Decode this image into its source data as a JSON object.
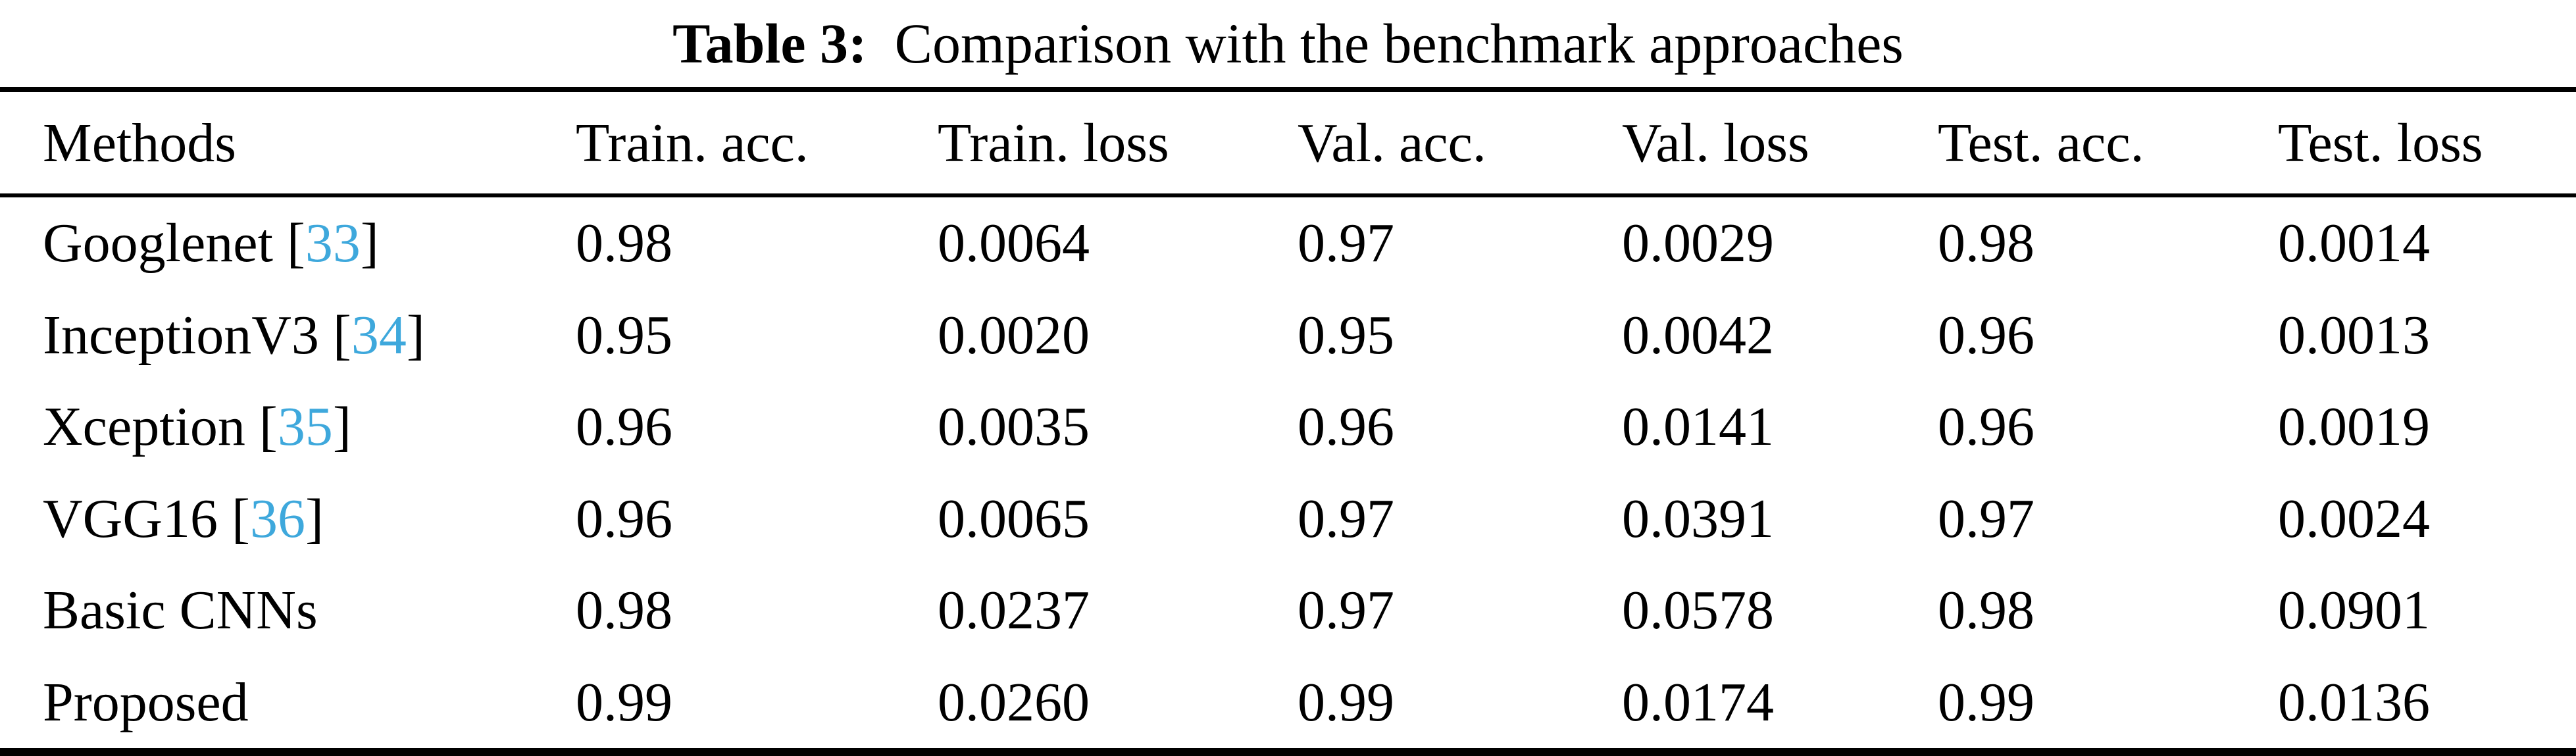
{
  "title": {
    "label": "Table 3:",
    "text": "Comparison with the benchmark approaches"
  },
  "columns": [
    "Methods",
    "Train. acc.",
    "Train. loss",
    "Val. acc.",
    "Val. loss",
    "Test. acc.",
    "Test. loss"
  ],
  "punctuation": {
    "bracket_open": "[",
    "bracket_close": "]"
  },
  "colors": {
    "citation": "#3ea8dc",
    "text": "#000000",
    "background": "#ffffff",
    "rule": "#000000"
  },
  "rows": [
    {
      "method": "Googlenet",
      "citation": "33",
      "train_acc": "0.98",
      "train_loss": "0.0064",
      "val_acc": "0.97",
      "val_loss": "0.0029",
      "test_acc": "0.98",
      "test_loss": "0.0014"
    },
    {
      "method": "InceptionV3",
      "citation": "34",
      "train_acc": "0.95",
      "train_loss": "0.0020",
      "val_acc": "0.95",
      "val_loss": "0.0042",
      "test_acc": "0.96",
      "test_loss": "0.0013"
    },
    {
      "method": "Xception",
      "citation": "35",
      "train_acc": "0.96",
      "train_loss": "0.0035",
      "val_acc": "0.96",
      "val_loss": "0.0141",
      "test_acc": "0.96",
      "test_loss": "0.0019"
    },
    {
      "method": "VGG16",
      "citation": "36",
      "train_acc": "0.96",
      "train_loss": "0.0065",
      "val_acc": "0.97",
      "val_loss": "0.0391",
      "test_acc": "0.97",
      "test_loss": "0.0024"
    },
    {
      "method": "Basic CNNs",
      "citation": "",
      "train_acc": "0.98",
      "train_loss": "0.0237",
      "val_acc": "0.97",
      "val_loss": "0.0578",
      "test_acc": "0.98",
      "test_loss": "0.0901"
    },
    {
      "method": "Proposed",
      "citation": "",
      "train_acc": "0.99",
      "train_loss": "0.0260",
      "val_acc": "0.99",
      "val_loss": "0.0174",
      "test_acc": "0.99",
      "test_loss": "0.0136"
    }
  ],
  "chart_data": {
    "type": "table",
    "title": "Table 3: Comparison with the benchmark approaches",
    "columns": [
      "Methods",
      "Train. acc.",
      "Train. loss",
      "Val. acc.",
      "Val. loss",
      "Test. acc.",
      "Test. loss"
    ],
    "rows": [
      [
        "Googlenet [33]",
        0.98,
        0.0064,
        0.97,
        0.0029,
        0.98,
        0.0014
      ],
      [
        "InceptionV3 [34]",
        0.95,
        0.002,
        0.95,
        0.0042,
        0.96,
        0.0013
      ],
      [
        "Xception [35]",
        0.96,
        0.0035,
        0.96,
        0.0141,
        0.96,
        0.0019
      ],
      [
        "VGG16 [36]",
        0.96,
        0.0065,
        0.97,
        0.0391,
        0.97,
        0.0024
      ],
      [
        "Basic CNNs",
        0.98,
        0.0237,
        0.97,
        0.0578,
        0.98,
        0.0901
      ],
      [
        "Proposed",
        0.99,
        0.026,
        0.99,
        0.0174,
        0.99,
        0.0136
      ]
    ]
  }
}
